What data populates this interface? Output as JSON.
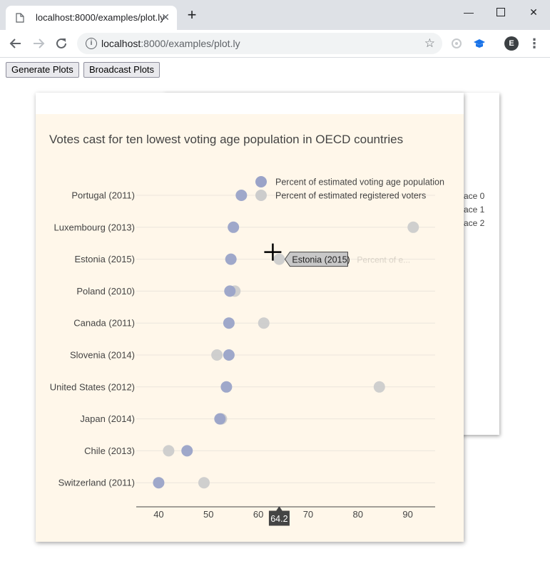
{
  "browser": {
    "tab_title": "localhost:8000/examples/plot.ly",
    "url_host": "localhost",
    "url_path": ":8000/examples/plot.ly",
    "avatar_letter": "E",
    "colors": {
      "tabstrip": "#dee1e6",
      "omnibox": "#f1f3f4"
    }
  },
  "page": {
    "buttons": {
      "generate": "Generate Plots",
      "broadcast": "Broadcast Plots"
    }
  },
  "back_plot": {
    "legend": [
      "ace 0",
      "ace 1",
      "ace 2"
    ]
  },
  "chart_data": {
    "type": "scatter",
    "title": "Votes cast for ten lowest voting age population in OECD countries",
    "categories": [
      "Portugal (2011)",
      "Luxembourg (2013)",
      "Estonia (2015)",
      "Poland (2010)",
      "Canada (2011)",
      "Slovenia (2014)",
      "United States (2012)",
      "Japan (2014)",
      "Chile (2013)",
      "Switzerland (2011)"
    ],
    "series": [
      {
        "name": "Percent of estimated voting age population",
        "color": "#9aa3c8",
        "values": [
          56.6,
          55.0,
          54.5,
          54.3,
          54.1,
          54.1,
          53.6,
          52.3,
          45.7,
          40.0
        ]
      },
      {
        "name": "Percent of estimated registered voters",
        "color": "#cccccc",
        "values": null
      }
    ],
    "registered_values": [
      null,
      91.1,
      64.2,
      55.3,
      61.1,
      51.7,
      84.3,
      52.6,
      42.0,
      49.1
    ],
    "xlim": [
      35.5,
      95.5
    ],
    "xticks": [
      40,
      50,
      60,
      70,
      80,
      90
    ],
    "legend_position": "top-right",
    "hover": {
      "label": "Estonia (2015)",
      "series_label": "Percent of e...",
      "x_value": "64.2"
    }
  }
}
